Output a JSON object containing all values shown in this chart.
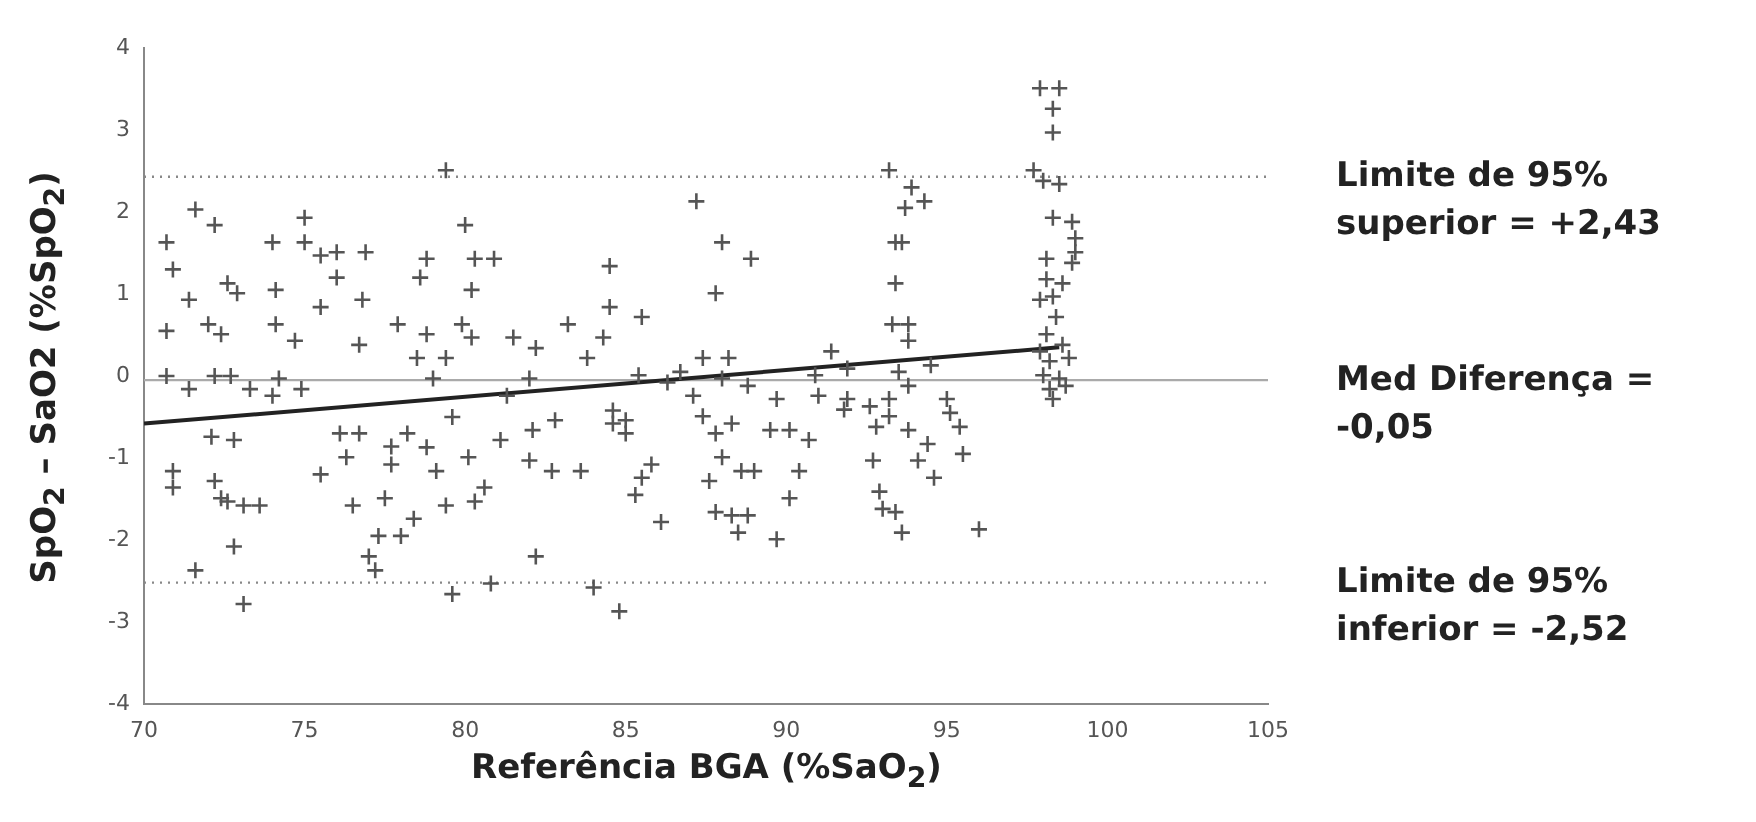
{
  "chart_data": {
    "type": "scatter",
    "xlabel": "Referência BGA (%SaO$_{2}$)",
    "ylabel": "SpO$_{2}$ – SaO2 (%SpO$_{2}$)",
    "xlim": [
      70,
      105
    ],
    "xticks": [
      70,
      75,
      80,
      85,
      90,
      95,
      100,
      105
    ],
    "ylim": [
      -4,
      4
    ],
    "yticks": [
      -4,
      -3,
      -2,
      -1,
      0,
      1,
      2,
      3,
      4
    ],
    "series": [
      {
        "marker": "cross",
        "color": "#555555",
        "x": [
          70.7,
          70.9,
          70.7,
          70.7,
          70.9,
          70.9,
          71.6,
          71.4,
          71.4,
          72.2,
          72.0,
          72.4,
          72.2,
          72.1,
          72.2,
          72.4,
          71.6,
          72.6,
          72.9,
          72.7,
          72.8,
          72.6,
          73.1,
          72.8,
          73.1,
          73.6,
          73.3,
          74.0,
          74.1,
          74.1,
          74.0,
          74.2,
          74.7,
          75.0,
          75.0,
          74.9,
          75.5,
          75.5,
          76.0,
          76.0,
          76.7,
          76.9,
          76.8,
          76.1,
          76.7,
          76.3,
          75.5,
          76.5,
          77.5,
          77.7,
          77.7,
          77.0,
          77.2,
          77.3,
          78.2,
          78.0,
          77.9,
          78.4,
          78.5,
          78.6,
          78.8,
          78.8,
          78.8,
          79.0,
          79.4,
          79.4,
          79.6,
          79.4,
          79.1,
          79.6,
          79.9,
          80.0,
          80.1,
          80.2,
          80.3,
          80.3,
          80.2,
          80.6,
          80.8,
          80.9,
          81.1,
          81.5,
          82.2,
          82.0,
          81.3,
          82.1,
          82.0,
          82.7,
          82.8,
          83.6,
          82.2,
          84.0,
          84.8,
          84.5,
          84.5,
          83.2,
          84.3,
          83.8,
          85.5,
          84.6,
          85.0,
          84.6,
          85.0,
          85.4,
          85.8,
          85.5,
          85.3,
          86.1,
          86.3,
          86.7,
          87.2,
          87.4,
          87.1,
          87.4,
          88.0,
          87.8,
          88.2,
          88.0,
          88.8,
          88.9,
          87.8,
          88.3,
          88.0,
          87.6,
          88.6,
          89.0,
          87.8,
          88.3,
          88.5,
          88.8,
          89.7,
          89.5,
          90.1,
          90.7,
          89.7,
          90.1,
          90.4,
          90.9,
          91.4,
          91.0,
          91.9,
          91.9,
          91.8,
          92.6,
          92.8,
          92.7,
          92.9,
          93.0,
          93.2,
          93.4,
          93.4,
          93.3,
          93.9,
          94.3,
          93.7,
          93.6,
          93.8,
          93.8,
          94.5,
          93.5,
          93.8,
          93.2,
          93.2,
          93.8,
          95.0,
          95.1,
          95.4,
          95.5,
          94.4,
          94.1,
          94.6,
          93.4,
          93.6,
          96.0,
          97.9,
          98.5,
          98.3,
          98.3,
          97.7,
          98.0,
          98.5,
          98.3,
          98.9,
          99.0,
          99.0,
          98.1,
          98.9,
          98.1,
          98.6,
          97.9,
          98.3,
          98.4,
          98.1,
          98.6,
          97.9,
          98.2,
          98.8,
          98.0,
          98.5,
          98.2,
          98.7,
          98.3
        ],
        "values": [
          1.63,
          1.3,
          0.55,
          0.0,
          -1.16,
          -1.36,
          2.03,
          0.93,
          -0.16,
          1.84,
          0.63,
          0.51,
          0.0,
          -0.74,
          -1.28,
          -1.49,
          -2.37,
          1.13,
          1.01,
          0.0,
          -0.78,
          -1.53,
          -1.58,
          -2.08,
          -2.78,
          -1.58,
          -0.16,
          1.63,
          1.05,
          0.63,
          -0.24,
          -0.03,
          0.43,
          1.93,
          1.63,
          -0.16,
          1.47,
          0.84,
          1.51,
          1.2,
          0.38,
          1.51,
          0.93,
          -0.7,
          -0.7,
          -0.99,
          -1.2,
          -1.58,
          -1.49,
          -0.86,
          -1.08,
          -2.2,
          -2.37,
          -1.95,
          -0.7,
          -1.95,
          0.63,
          -1.74,
          0.22,
          1.2,
          -0.87,
          1.43,
          0.51,
          -0.03,
          0.22,
          2.51,
          -2.66,
          -1.58,
          -1.16,
          -0.5,
          0.63,
          1.84,
          -0.99,
          1.05,
          1.43,
          -1.53,
          0.47,
          -1.36,
          -2.53,
          1.43,
          -0.78,
          0.47,
          0.34,
          -0.03,
          -0.24,
          -0.66,
          -1.03,
          -1.16,
          -0.54,
          -1.16,
          -2.2,
          -2.58,
          -2.87,
          1.34,
          0.84,
          0.63,
          0.47,
          0.22,
          0.72,
          -0.42,
          -0.54,
          -0.58,
          -0.7,
          0.01,
          -1.08,
          -1.24,
          -1.45,
          -1.78,
          -0.08,
          0.05,
          2.13,
          0.22,
          -0.24,
          -0.49,
          1.63,
          1.01,
          0.22,
          -0.03,
          -0.12,
          1.43,
          -0.7,
          -0.58,
          -0.99,
          -1.28,
          -1.16,
          -1.16,
          -1.66,
          -1.7,
          -1.91,
          -1.7,
          -0.28,
          -0.66,
          -0.66,
          -0.78,
          -1.99,
          -1.49,
          -1.16,
          0.01,
          0.3,
          -0.24,
          0.09,
          -0.28,
          -0.41,
          -0.37,
          -0.62,
          -1.03,
          -1.41,
          -1.62,
          2.51,
          1.63,
          1.13,
          0.63,
          2.3,
          2.13,
          2.05,
          1.63,
          0.63,
          0.43,
          0.13,
          0.05,
          -0.12,
          -0.28,
          -0.49,
          -0.66,
          -0.28,
          -0.45,
          -0.62,
          -0.95,
          -0.83,
          -1.03,
          -1.24,
          -1.66,
          -1.91,
          -1.87,
          3.51,
          3.51,
          3.26,
          2.97,
          2.51,
          2.38,
          2.34,
          1.93,
          1.88,
          1.68,
          1.51,
          1.43,
          1.38,
          1.18,
          1.13,
          0.93,
          0.97,
          0.72,
          0.51,
          0.38,
          0.3,
          0.18,
          0.22,
          0.01,
          -0.03,
          -0.16,
          -0.12,
          -0.28
        ]
      },
      {
        "type": "line",
        "marker": "none",
        "color": "#222222",
        "x": [
          70,
          98.5
        ],
        "values": [
          -0.58,
          0.35
        ]
      }
    ],
    "ref_lines": [
      {
        "axis": "y",
        "value": 2.43,
        "label": "Limite de 95% superior = +2,43",
        "color": "#888888",
        "line_style": "dotted"
      },
      {
        "axis": "y",
        "value": -0.05,
        "label": "Med Diferença = -0,05",
        "color": "#aaaaaa",
        "line_style": "solid"
      },
      {
        "axis": "y",
        "value": -2.52,
        "label": "Limite de 95% inferior = -2,52",
        "color": "#888888",
        "line_style": "dotted"
      }
    ]
  }
}
